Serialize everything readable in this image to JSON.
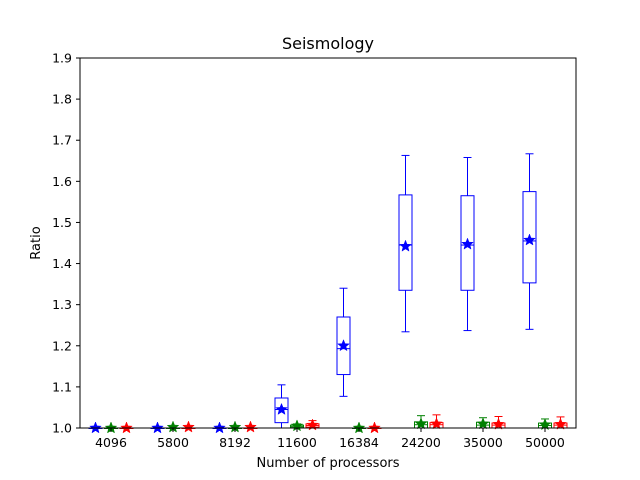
{
  "chart_data": {
    "type": "box",
    "title": "Seismology",
    "xlabel": "Number of processors",
    "ylabel": "Ratio",
    "ylim": [
      1.0,
      1.9
    ],
    "yticks": [
      "1.0",
      "1.1",
      "1.2",
      "1.3",
      "1.4",
      "1.5",
      "1.6",
      "1.7",
      "1.8",
      "1.9"
    ],
    "categories": [
      "4096",
      "5800",
      "8192",
      "11600",
      "16384",
      "24200",
      "35000",
      "50000"
    ],
    "grid": false,
    "series": [
      {
        "color": "#0000ff",
        "boxes": [
          {
            "whislo": 1.0,
            "q1": 1.0,
            "med": 1.0,
            "q3": 1.0,
            "whishi": 1.0,
            "mean": 1.0
          },
          {
            "whislo": 1.0,
            "q1": 1.0,
            "med": 1.0,
            "q3": 1.0,
            "whishi": 1.0,
            "mean": 1.0
          },
          {
            "whislo": 1.0,
            "q1": 1.0,
            "med": 1.0,
            "q3": 1.0,
            "whishi": 1.0,
            "mean": 1.0
          },
          {
            "whislo": 1.0,
            "q1": 1.013,
            "med": 1.045,
            "q3": 1.073,
            "whishi": 1.105,
            "mean": 1.045
          },
          {
            "whislo": 1.077,
            "q1": 1.13,
            "med": 1.193,
            "q3": 1.27,
            "whishi": 1.34,
            "mean": 1.2
          },
          {
            "whislo": 1.234,
            "q1": 1.335,
            "med": 1.445,
            "q3": 1.567,
            "whishi": 1.663,
            "mean": 1.442
          },
          {
            "whislo": 1.237,
            "q1": 1.335,
            "med": 1.445,
            "q3": 1.565,
            "whishi": 1.658,
            "mean": 1.447
          },
          {
            "whislo": 1.24,
            "q1": 1.353,
            "med": 1.455,
            "q3": 1.575,
            "whishi": 1.667,
            "mean": 1.457
          }
        ]
      },
      {
        "color": "#008000",
        "boxes": [
          {
            "whislo": 1.0,
            "q1": 1.0,
            "med": 1.0,
            "q3": 1.0,
            "whishi": 1.002,
            "mean": 1.0
          },
          {
            "whislo": 1.0,
            "q1": 1.0,
            "med": 1.0,
            "q3": 1.0,
            "whishi": 1.004,
            "mean": 1.002
          },
          {
            "whislo": 1.0,
            "q1": 1.0,
            "med": 1.0,
            "q3": 1.0,
            "whishi": 1.004,
            "mean": 1.002
          },
          {
            "whislo": 1.0,
            "q1": 1.001,
            "med": 1.004,
            "q3": 1.007,
            "whishi": 1.01,
            "mean": 1.005
          },
          {
            "whislo": 1.0,
            "q1": 1.0,
            "med": 1.0,
            "q3": 1.0,
            "whishi": 1.002,
            "mean": 1.0
          },
          {
            "whislo": 1.0,
            "q1": 1.0,
            "med": 1.008,
            "q3": 1.015,
            "whishi": 1.03,
            "mean": 1.01
          },
          {
            "whislo": 1.0,
            "q1": 1.0,
            "med": 1.007,
            "q3": 1.014,
            "whishi": 1.025,
            "mean": 1.01
          },
          {
            "whislo": 1.0,
            "q1": 1.0,
            "med": 1.006,
            "q3": 1.012,
            "whishi": 1.022,
            "mean": 1.008
          }
        ]
      },
      {
        "color": "#ff0000",
        "boxes": [
          {
            "whislo": 1.0,
            "q1": 1.0,
            "med": 1.0,
            "q3": 1.0,
            "whishi": 1.002,
            "mean": 1.0
          },
          {
            "whislo": 1.0,
            "q1": 1.0,
            "med": 1.0,
            "q3": 1.0,
            "whishi": 1.004,
            "mean": 1.002
          },
          {
            "whislo": 1.0,
            "q1": 1.0,
            "med": 1.0,
            "q3": 1.0,
            "whishi": 1.004,
            "mean": 1.002
          },
          {
            "whislo": 1.0,
            "q1": 1.002,
            "med": 1.006,
            "q3": 1.01,
            "whishi": 1.018,
            "mean": 1.007
          },
          {
            "whislo": 1.0,
            "q1": 1.0,
            "med": 1.0,
            "q3": 1.0,
            "whishi": 1.002,
            "mean": 1.0
          },
          {
            "whislo": 1.0,
            "q1": 1.0,
            "med": 1.008,
            "q3": 1.013,
            "whishi": 1.032,
            "mean": 1.01
          },
          {
            "whislo": 1.0,
            "q1": 1.0,
            "med": 1.007,
            "q3": 1.012,
            "whishi": 1.028,
            "mean": 1.009
          },
          {
            "whislo": 1.0,
            "q1": 1.0,
            "med": 1.007,
            "q3": 1.012,
            "whishi": 1.027,
            "mean": 1.009
          }
        ]
      }
    ]
  }
}
